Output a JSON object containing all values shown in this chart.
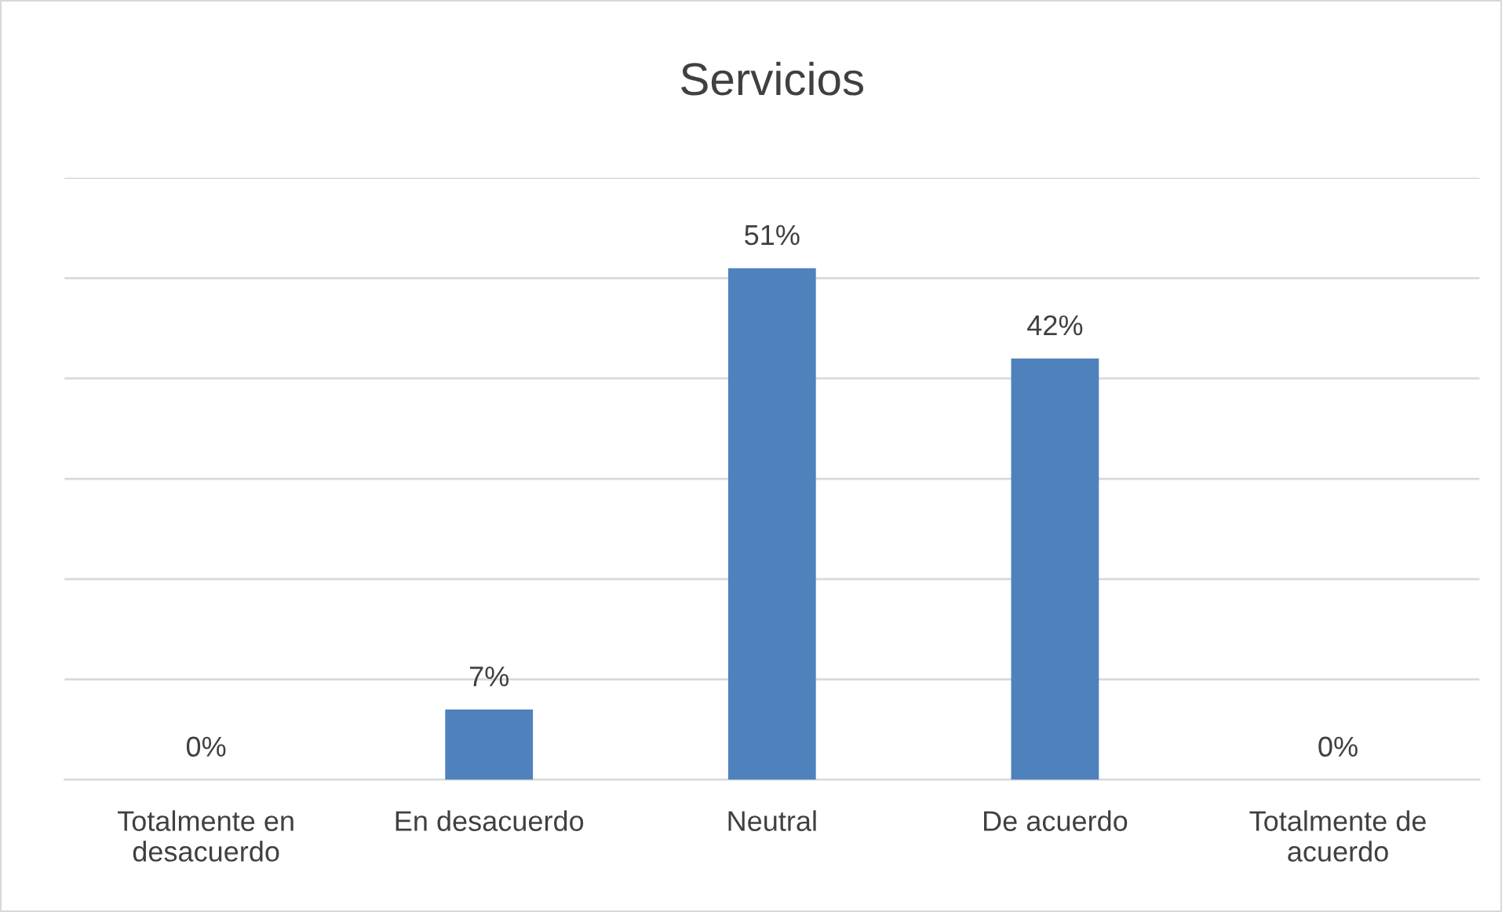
{
  "chart_data": {
    "type": "bar",
    "title": "Servicios",
    "categories": [
      "Totalmente en\ndesacuerdo",
      "En desacuerdo",
      "Neutral",
      "De acuerdo",
      "Totalmente de\nacuerdo"
    ],
    "values": [
      0,
      7,
      51,
      42,
      0
    ],
    "value_labels": [
      "0%",
      "7%",
      "51%",
      "42%",
      "0%"
    ],
    "color": "#4f81bd",
    "ylim": [
      0,
      60
    ],
    "yticks": [
      {
        "value": 0,
        "label": null
      },
      {
        "value": 10,
        "label": null
      },
      {
        "value": 20,
        "label": null
      },
      {
        "value": 30,
        "label": null
      },
      {
        "value": 40,
        "label": null
      },
      {
        "value": 50,
        "label": null
      },
      {
        "value": 60,
        "label": null
      }
    ],
    "tick_labels": "x",
    "grid": "y",
    "legend": false
  }
}
